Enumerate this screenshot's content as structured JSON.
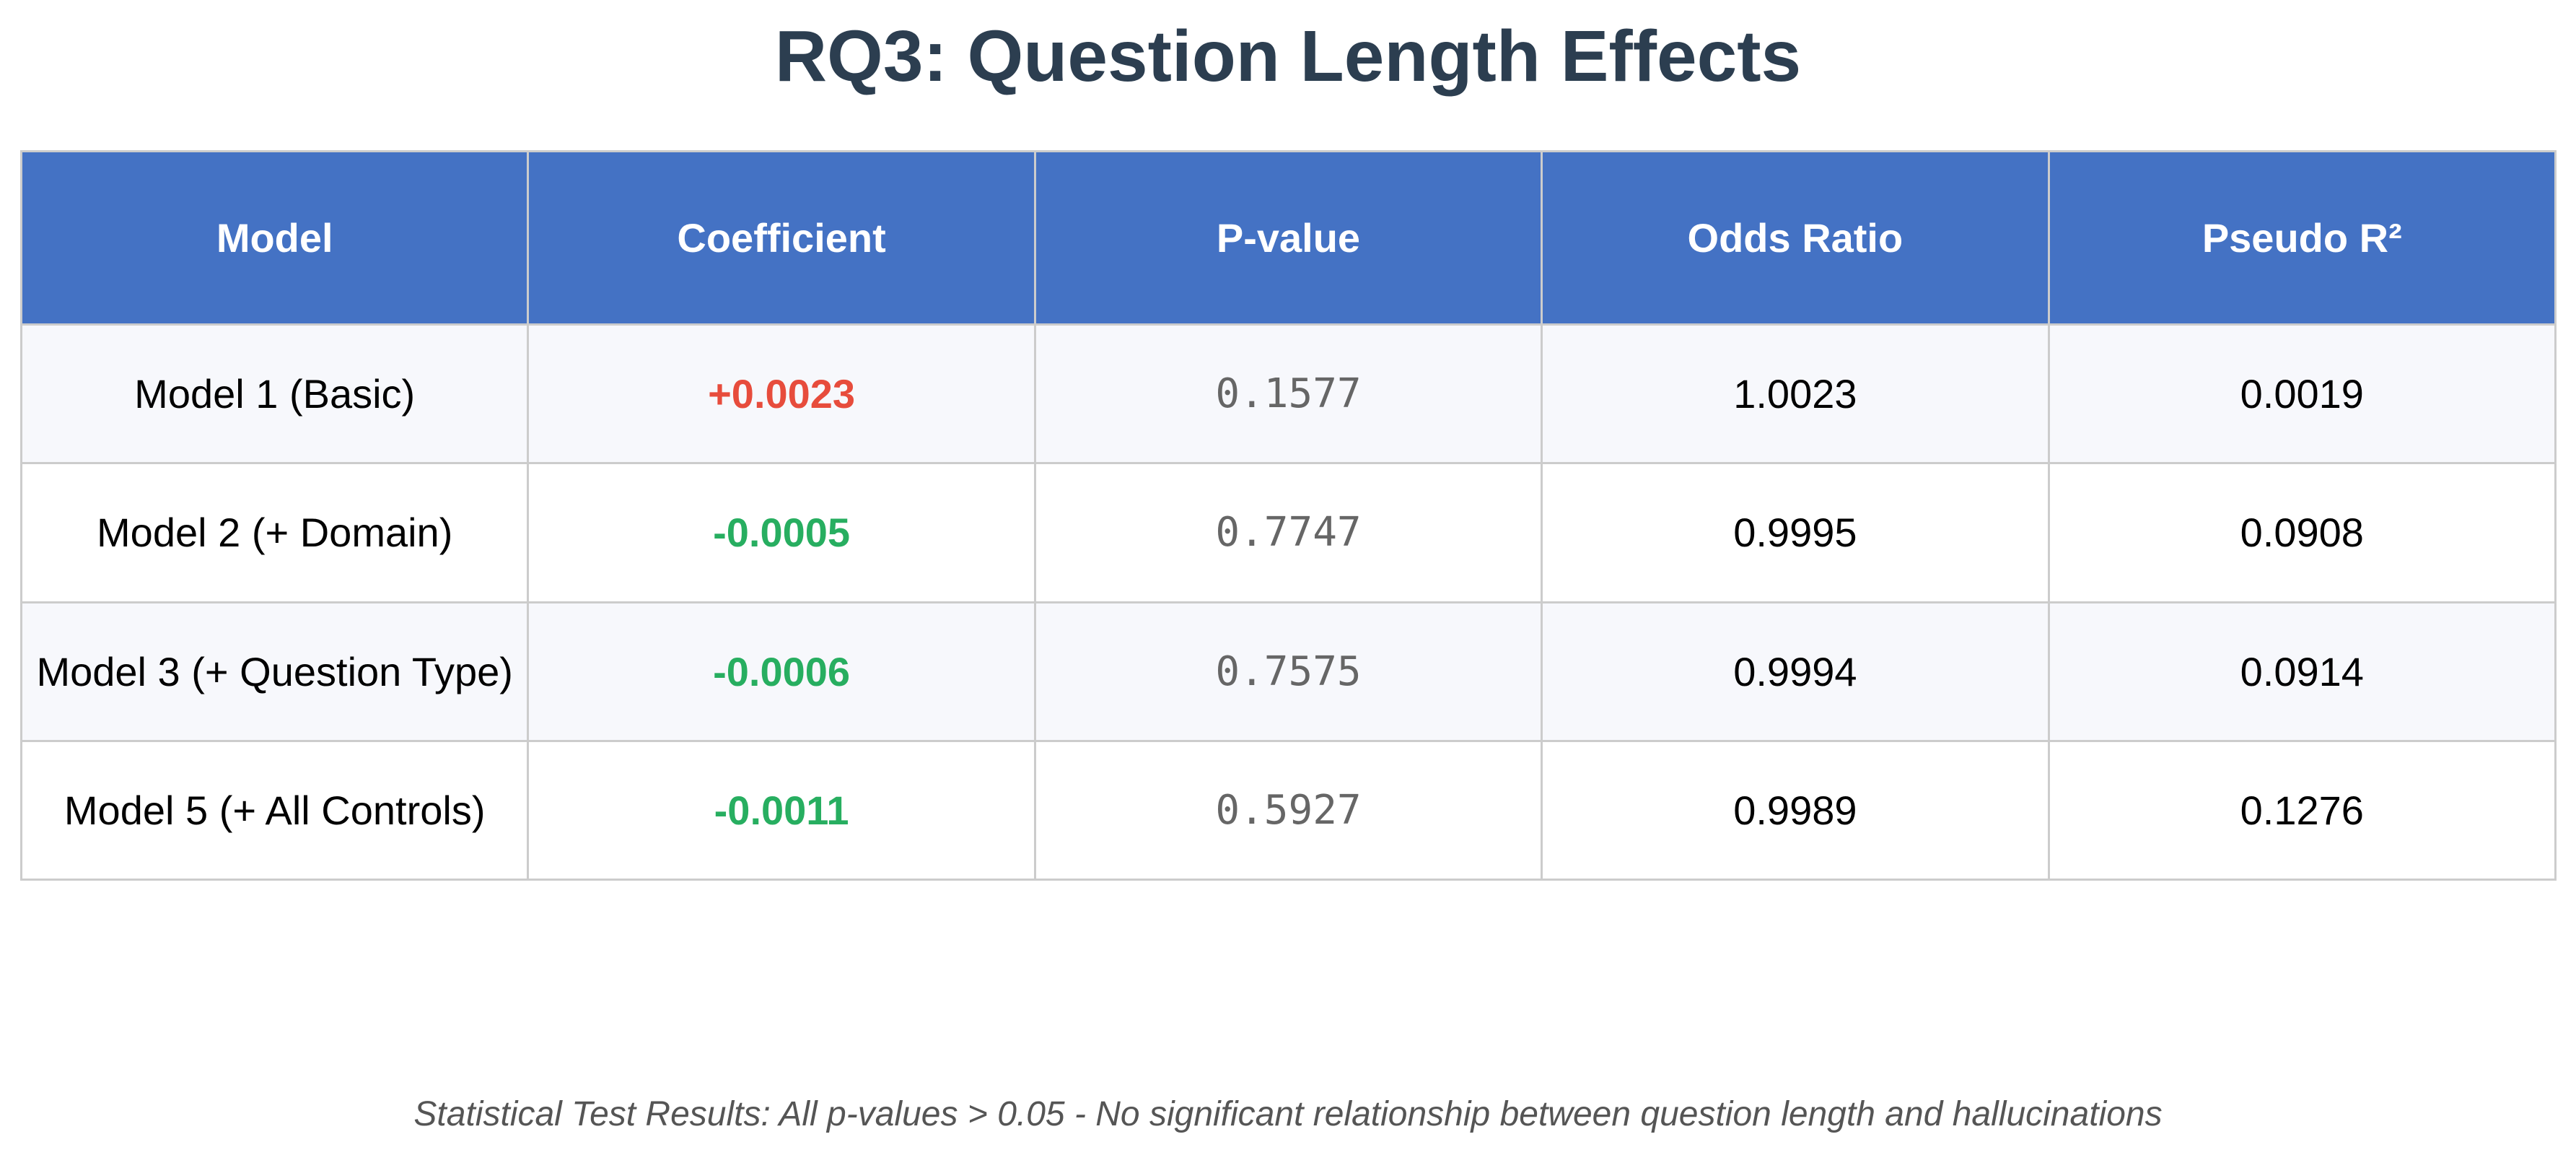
{
  "chart_data": {
    "type": "table",
    "title": "RQ3: Question Length Effects",
    "columns": [
      "Model",
      "Coefficient",
      "P-value",
      "Odds Ratio",
      "Pseudo R²"
    ],
    "rows": [
      {
        "model": "Model 1 (Basic)",
        "coefficient": "+0.0023",
        "p_value": "0.1577",
        "odds_ratio": "1.0023",
        "pseudo_r2": "0.0019",
        "coef_color": "#e74c3c"
      },
      {
        "model": "Model 2 (+ Domain)",
        "coefficient": "-0.0005",
        "p_value": "0.7747",
        "odds_ratio": "0.9995",
        "pseudo_r2": "0.0908",
        "coef_color": "#27ae60"
      },
      {
        "model": "Model 3 (+ Question Type)",
        "coefficient": "-0.0006",
        "p_value": "0.7575",
        "odds_ratio": "0.9994",
        "pseudo_r2": "0.0914",
        "coef_color": "#27ae60"
      },
      {
        "model": "Model 5 (+ All Controls)",
        "coefficient": "-0.0011",
        "p_value": "0.5927",
        "odds_ratio": "0.9989",
        "pseudo_r2": "0.1276",
        "coef_color": "#27ae60"
      }
    ],
    "footnote": "Statistical Test Results: All p-values > 0.05 - No significant relationship between question length and hallucinations"
  },
  "colors": {
    "header_bg": "#4472c4",
    "title": "#2c3e50",
    "positive_coef": "#e74c3c",
    "negative_coef": "#27ae60",
    "stripe": "#f7f8fc",
    "border": "#cccccc"
  }
}
